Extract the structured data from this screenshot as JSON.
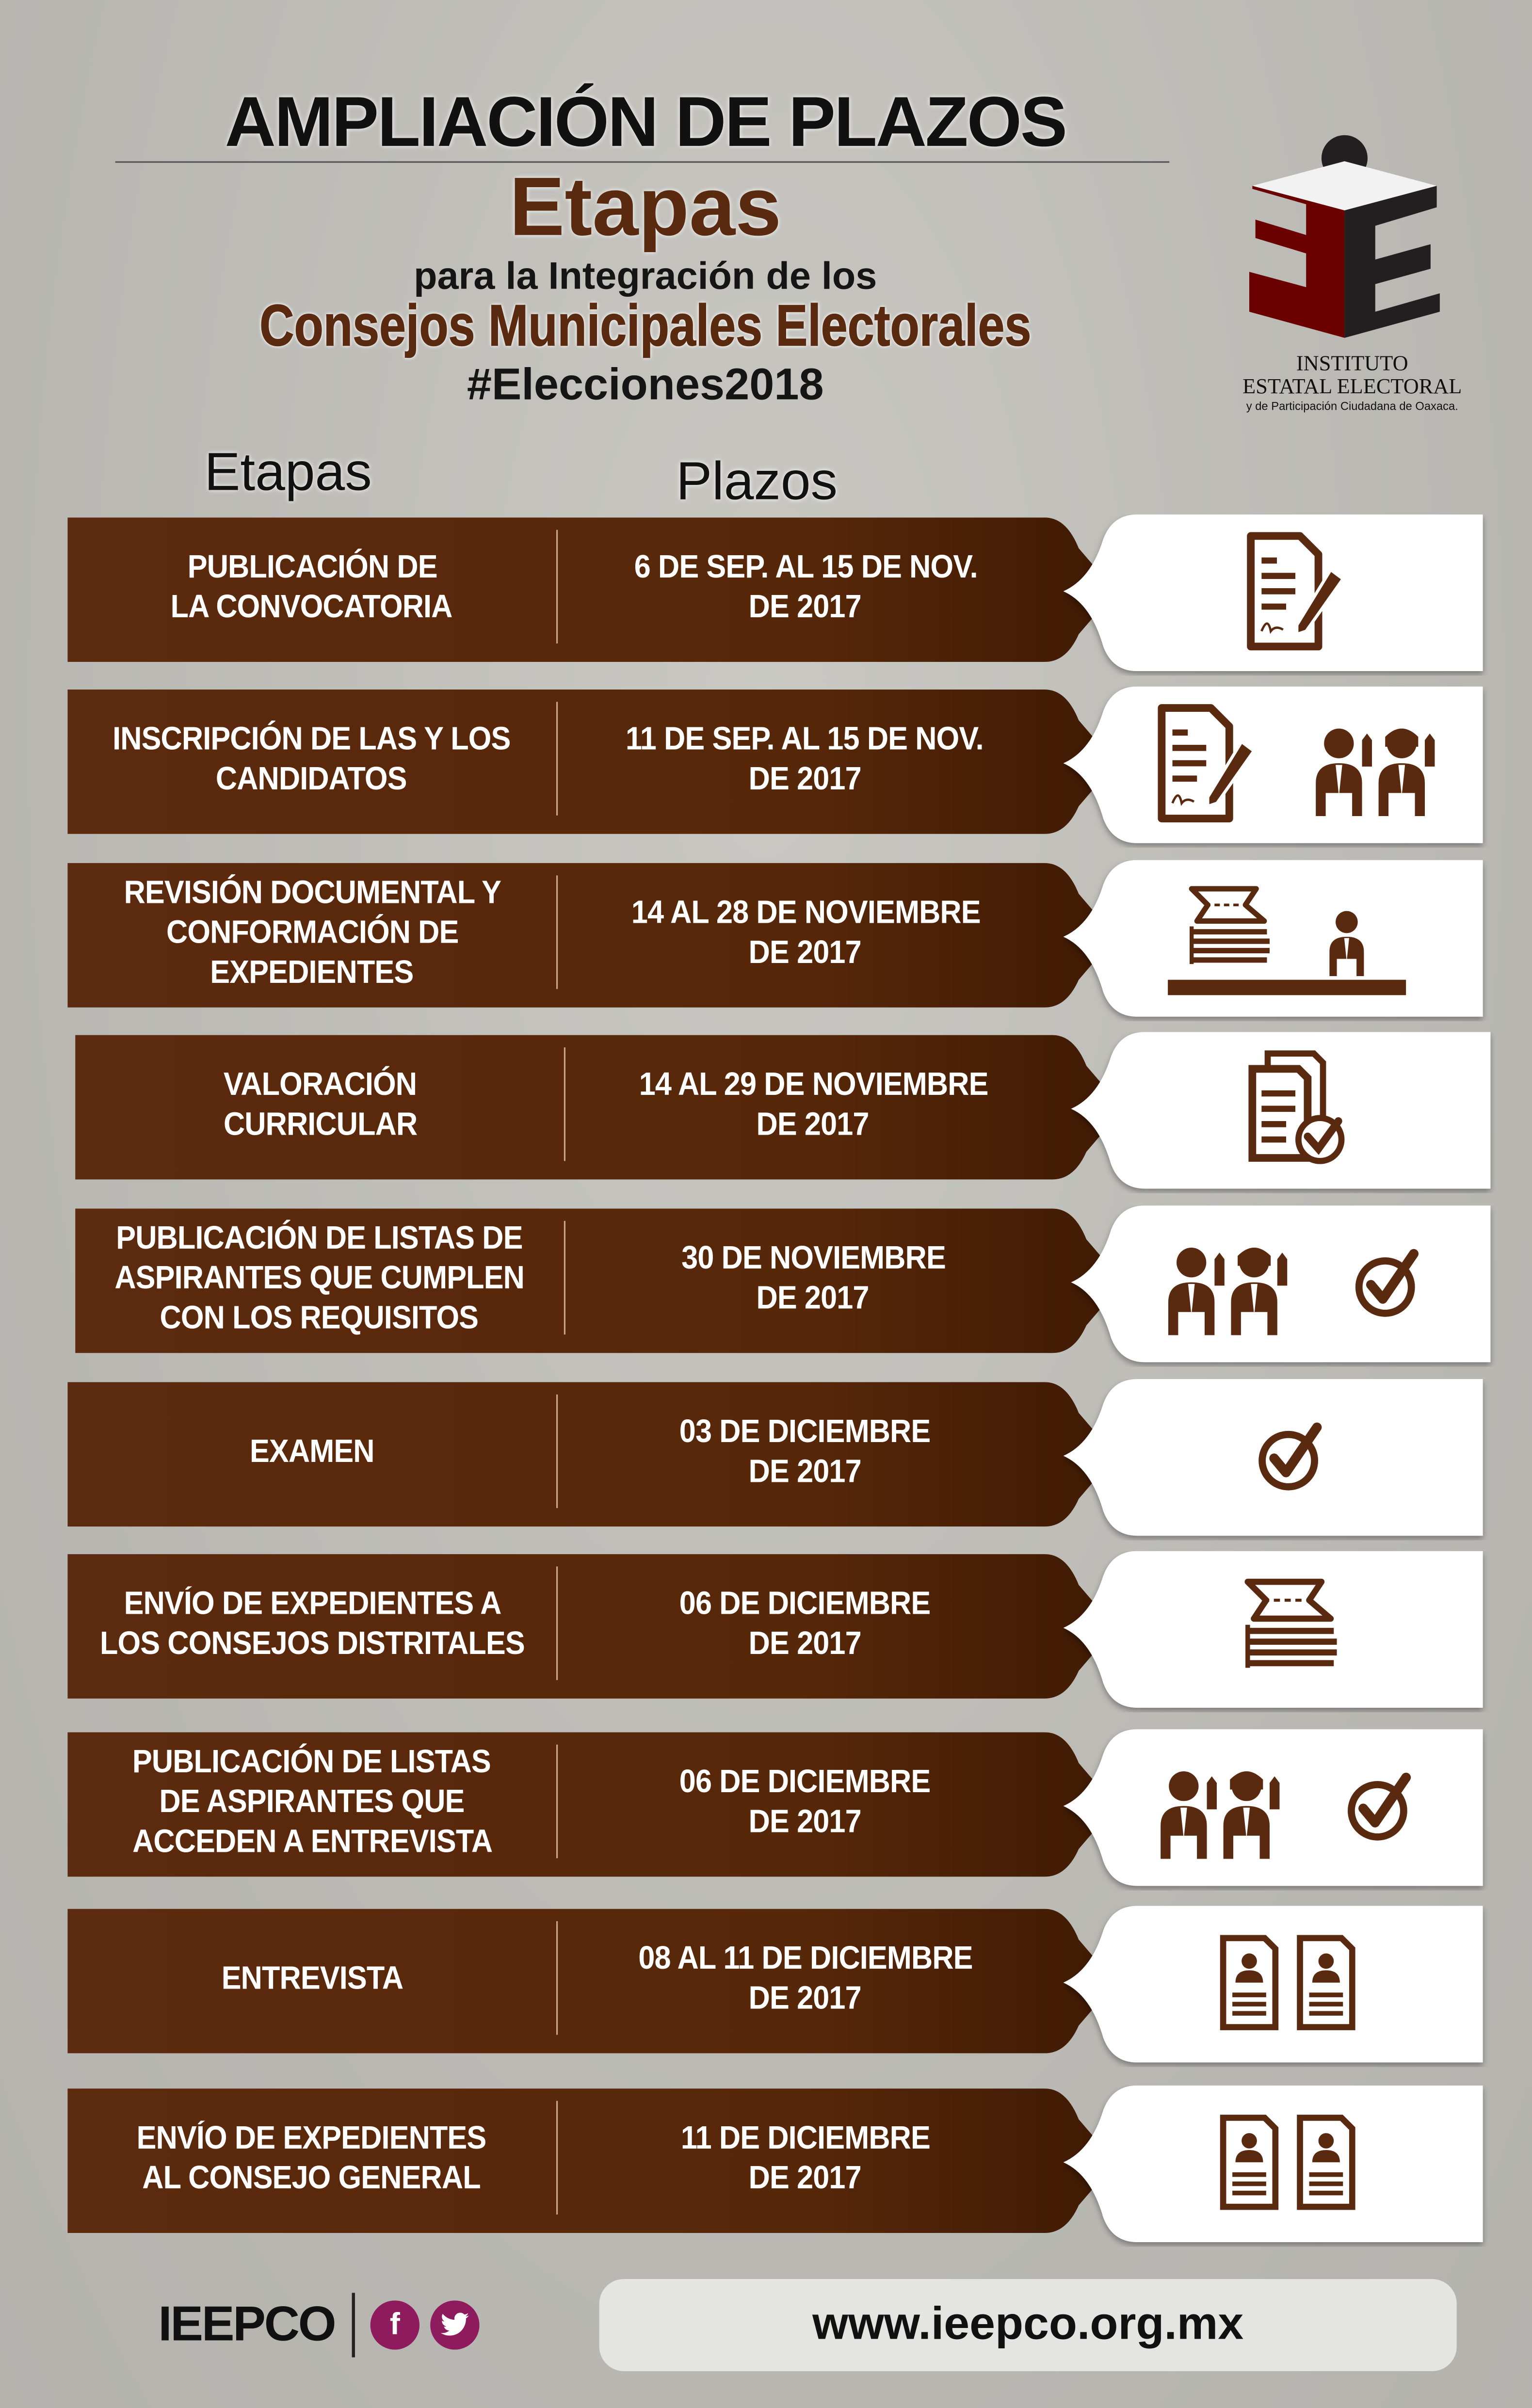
{
  "header": {
    "title": "AMPLIACIÓN DE PLAZOS",
    "subtitle": "Etapas",
    "line2": "para la Integración de los",
    "line3": "Consejos Municipales Electorales",
    "hashtag": "#Elecciones2018"
  },
  "logo": {
    "line1": "INSTITUTO",
    "line2": "ESTATAL ELECTORAL",
    "line3": "y de Participación Ciudadana de Oaxaca.",
    "colors": {
      "red": "#6b0000",
      "dark": "#231f20"
    }
  },
  "columns": {
    "etapas": "Etapas",
    "plazos": "Plazos"
  },
  "colors": {
    "band": "#5a2a10",
    "icon": "#5a2a10",
    "social": "#8e1b5d"
  },
  "rows": [
    {
      "etapa": [
        "PUBLICACIÓN DE",
        "LA CONVOCATORIA"
      ],
      "plazo": [
        "6 DE SEP. AL 15 DE NOV.",
        "DE 2017"
      ],
      "icons": [
        "document-sign-icon"
      ]
    },
    {
      "etapa": [
        "INSCRIPCIÓN DE LAS Y LOS",
        "CANDIDATOS"
      ],
      "plazo": [
        "11 DE SEP. AL 15 DE NOV.",
        "DE 2017"
      ],
      "icons": [
        "document-sign-icon",
        "candidates-icon"
      ]
    },
    {
      "etapa": [
        "REVISIÓN DOCUMENTAL Y",
        "CONFORMACIÓN DE",
        "EXPEDIENTES"
      ],
      "plazo": [
        "14  AL 28 DE NOVIEMBRE",
        "DE 2017"
      ],
      "icons": [
        "review-desk-icon"
      ]
    },
    {
      "etapa": [
        "VALORACIÓN",
        "CURRICULAR"
      ],
      "plazo": [
        "14 AL 29 DE NOVIEMBRE",
        "DE 2017"
      ],
      "icons": [
        "documents-check-icon"
      ]
    },
    {
      "etapa": [
        "PUBLICACIÓN DE LISTAS DE",
        "ASPIRANTES QUE CUMPLEN",
        "CON LOS REQUISITOS"
      ],
      "plazo": [
        "30 DE NOVIEMBRE",
        "DE 2017"
      ],
      "icons": [
        "candidates-icon",
        "check-circle-icon"
      ]
    },
    {
      "etapa": [
        "EXAMEN"
      ],
      "plazo": [
        "03 DE DICIEMBRE",
        "DE 2017"
      ],
      "icons": [
        "check-circle-icon"
      ]
    },
    {
      "etapa": [
        "ENVÍO DE EXPEDIENTES A",
        "LOS CONSEJOS DISTRITALES"
      ],
      "plazo": [
        "06 DE DICIEMBRE",
        "DE 2017"
      ],
      "icons": [
        "papers-stack-icon"
      ]
    },
    {
      "etapa": [
        "PUBLICACIÓN DE LISTAS",
        "DE ASPIRANTES QUE",
        "ACCEDEN A ENTREVISTA"
      ],
      "plazo": [
        "06 DE DICIEMBRE",
        "DE 2017"
      ],
      "icons": [
        "candidates-icon",
        "check-circle-icon"
      ]
    },
    {
      "etapa": [
        "ENTREVISTA"
      ],
      "plazo": [
        "08 AL 11 DE DICIEMBRE",
        "DE 2017"
      ],
      "icons": [
        "cv-pair-icon"
      ]
    },
    {
      "etapa": [
        "ENVÍO DE EXPEDIENTES",
        "AL CONSEJO GENERAL"
      ],
      "plazo": [
        "11 DE DICIEMBRE",
        "DE 2017"
      ],
      "icons": [
        "cv-pair-icon"
      ]
    }
  ],
  "footer": {
    "brand": "IEEPCO",
    "facebook_icon": "f",
    "website": "www.ieepco.org.mx"
  }
}
